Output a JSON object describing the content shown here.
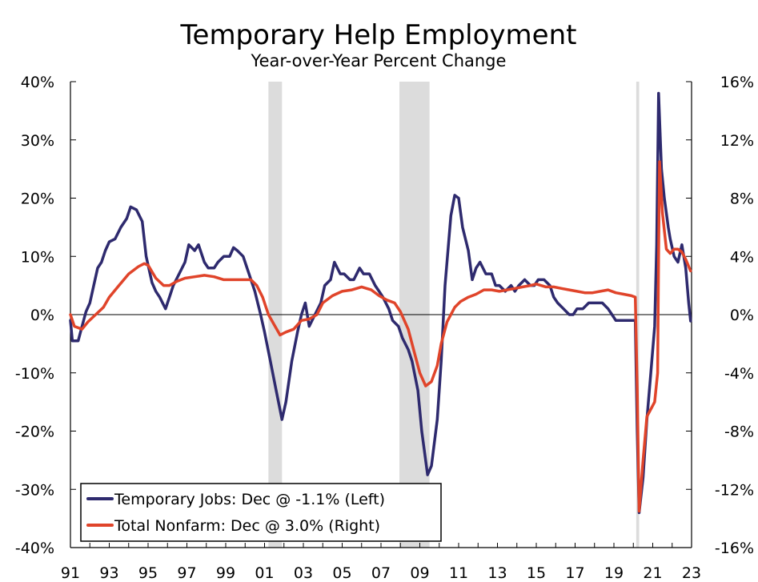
{
  "chart_data": {
    "type": "line",
    "title": "Temporary Help Employment",
    "subtitle": "Year-over-Year Percent Change",
    "x_tick_labels": [
      "91",
      "93",
      "95",
      "97",
      "99",
      "01",
      "03",
      "05",
      "07",
      "09",
      "11",
      "13",
      "15",
      "17",
      "19",
      "21",
      "23"
    ],
    "x_range": [
      1991,
      2023
    ],
    "y_left": {
      "range": [
        -40,
        40
      ],
      "ticks": [
        40,
        30,
        20,
        10,
        0,
        -10,
        -20,
        -30,
        -40
      ],
      "tick_labels": [
        "40%",
        "30%",
        "20%",
        "10%",
        "0%",
        "-10%",
        "-20%",
        "-30%",
        "-40%"
      ]
    },
    "y_right": {
      "range": [
        -16,
        16
      ],
      "ticks": [
        16,
        12,
        8,
        4,
        0,
        -4,
        -8,
        -12,
        -16
      ],
      "tick_labels": [
        "16%",
        "12%",
        "8%",
        "4%",
        "0%",
        "-4%",
        "-8%",
        "-12%",
        "-16%"
      ]
    },
    "recessions": [
      [
        2001.2,
        2001.9
      ],
      [
        2007.95,
        2009.5
      ],
      [
        2020.15,
        2020.3
      ]
    ],
    "legend": [
      {
        "label": "Temporary Jobs: Dec @ -1.1% (Left)",
        "color": "#2e2a6e"
      },
      {
        "label": "Total Nonfarm: Dec @ 3.0% (Right)",
        "color": "#e0442a"
      }
    ],
    "series": [
      {
        "name": "Temporary Jobs",
        "axis": "left",
        "color": "#2e2a6e",
        "points": [
          [
            1991.0,
            -1
          ],
          [
            1991.1,
            -4.5
          ],
          [
            1991.4,
            -4.5
          ],
          [
            1991.6,
            -2
          ],
          [
            1991.8,
            0.5
          ],
          [
            1992.0,
            2
          ],
          [
            1992.2,
            5
          ],
          [
            1992.4,
            8
          ],
          [
            1992.6,
            9
          ],
          [
            1992.8,
            11
          ],
          [
            1993.0,
            12.5
          ],
          [
            1993.3,
            13
          ],
          [
            1993.6,
            15
          ],
          [
            1993.9,
            16.5
          ],
          [
            1994.1,
            18.5
          ],
          [
            1994.4,
            18
          ],
          [
            1994.7,
            16
          ],
          [
            1994.9,
            10
          ],
          [
            1995.2,
            5.5
          ],
          [
            1995.4,
            4
          ],
          [
            1995.6,
            3
          ],
          [
            1995.9,
            1
          ],
          [
            1996.1,
            3
          ],
          [
            1996.3,
            5
          ],
          [
            1996.6,
            7
          ],
          [
            1996.9,
            9
          ],
          [
            1997.1,
            12
          ],
          [
            1997.4,
            11
          ],
          [
            1997.6,
            12
          ],
          [
            1997.9,
            9
          ],
          [
            1998.1,
            8
          ],
          [
            1998.4,
            8
          ],
          [
            1998.6,
            9
          ],
          [
            1998.9,
            10
          ],
          [
            1999.2,
            10
          ],
          [
            1999.4,
            11.5
          ],
          [
            1999.6,
            11
          ],
          [
            1999.9,
            10
          ],
          [
            2000.2,
            7
          ],
          [
            2000.5,
            4
          ],
          [
            2000.8,
            0
          ],
          [
            2001.0,
            -3
          ],
          [
            2001.3,
            -8
          ],
          [
            2001.6,
            -13
          ],
          [
            2001.9,
            -18
          ],
          [
            2002.1,
            -15
          ],
          [
            2002.4,
            -8
          ],
          [
            2002.7,
            -3
          ],
          [
            2002.9,
            0
          ],
          [
            2003.1,
            2
          ],
          [
            2003.3,
            -2
          ],
          [
            2003.6,
            0
          ],
          [
            2003.9,
            2
          ],
          [
            2004.1,
            5
          ],
          [
            2004.4,
            6
          ],
          [
            2004.6,
            9
          ],
          [
            2004.9,
            7
          ],
          [
            2005.1,
            7
          ],
          [
            2005.4,
            6
          ],
          [
            2005.6,
            6
          ],
          [
            2005.9,
            8
          ],
          [
            2006.1,
            7
          ],
          [
            2006.4,
            7
          ],
          [
            2006.7,
            5
          ],
          [
            2006.9,
            4
          ],
          [
            2007.1,
            3
          ],
          [
            2007.4,
            1
          ],
          [
            2007.6,
            -1
          ],
          [
            2007.9,
            -2
          ],
          [
            2008.1,
            -4
          ],
          [
            2008.4,
            -6
          ],
          [
            2008.6,
            -8
          ],
          [
            2008.9,
            -13
          ],
          [
            2009.1,
            -20
          ],
          [
            2009.4,
            -27.5
          ],
          [
            2009.6,
            -26
          ],
          [
            2009.9,
            -18
          ],
          [
            2010.1,
            -8
          ],
          [
            2010.3,
            5
          ],
          [
            2010.6,
            17
          ],
          [
            2010.8,
            20.5
          ],
          [
            2011.0,
            20
          ],
          [
            2011.2,
            15
          ],
          [
            2011.5,
            11
          ],
          [
            2011.7,
            6
          ],
          [
            2011.9,
            8
          ],
          [
            2012.1,
            9
          ],
          [
            2012.4,
            7
          ],
          [
            2012.7,
            7
          ],
          [
            2012.9,
            5
          ],
          [
            2013.1,
            5
          ],
          [
            2013.4,
            4
          ],
          [
            2013.7,
            5
          ],
          [
            2013.9,
            4
          ],
          [
            2014.1,
            5
          ],
          [
            2014.4,
            6
          ],
          [
            2014.7,
            5
          ],
          [
            2014.9,
            5
          ],
          [
            2015.1,
            6
          ],
          [
            2015.4,
            6
          ],
          [
            2015.7,
            5
          ],
          [
            2015.9,
            3
          ],
          [
            2016.1,
            2
          ],
          [
            2016.4,
            1
          ],
          [
            2016.7,
            0
          ],
          [
            2016.9,
            0
          ],
          [
            2017.1,
            1
          ],
          [
            2017.4,
            1
          ],
          [
            2017.7,
            2
          ],
          [
            2017.9,
            2
          ],
          [
            2018.1,
            2
          ],
          [
            2018.4,
            2
          ],
          [
            2018.7,
            1
          ],
          [
            2018.9,
            0
          ],
          [
            2019.1,
            -1
          ],
          [
            2019.4,
            -1
          ],
          [
            2019.7,
            -1
          ],
          [
            2019.9,
            -1
          ],
          [
            2020.1,
            -1
          ],
          [
            2020.2,
            -20
          ],
          [
            2020.3,
            -34
          ],
          [
            2020.5,
            -28
          ],
          [
            2020.7,
            -18
          ],
          [
            2020.9,
            -10
          ],
          [
            2021.1,
            -2
          ],
          [
            2021.2,
            12
          ],
          [
            2021.3,
            38
          ],
          [
            2021.45,
            25
          ],
          [
            2021.6,
            20
          ],
          [
            2021.8,
            15
          ],
          [
            2021.9,
            13
          ],
          [
            2022.1,
            10
          ],
          [
            2022.3,
            9
          ],
          [
            2022.5,
            12
          ],
          [
            2022.7,
            8
          ],
          [
            2022.85,
            2
          ],
          [
            2022.95,
            -1.1
          ]
        ]
      },
      {
        "name": "Total Nonfarm",
        "axis": "right",
        "color": "#e0442a",
        "points": [
          [
            1991.0,
            0
          ],
          [
            1991.2,
            -0.8
          ],
          [
            1991.6,
            -1
          ],
          [
            1991.9,
            -0.5
          ],
          [
            1992.3,
            0
          ],
          [
            1992.7,
            0.5
          ],
          [
            1993.0,
            1.2
          ],
          [
            1993.5,
            2
          ],
          [
            1994.0,
            2.8
          ],
          [
            1994.5,
            3.3
          ],
          [
            1994.8,
            3.5
          ],
          [
            1995.0,
            3.4
          ],
          [
            1995.4,
            2.5
          ],
          [
            1995.8,
            2
          ],
          [
            1996.1,
            2
          ],
          [
            1996.5,
            2.3
          ],
          [
            1996.9,
            2.5
          ],
          [
            1997.4,
            2.6
          ],
          [
            1997.9,
            2.7
          ],
          [
            1998.4,
            2.6
          ],
          [
            1998.9,
            2.4
          ],
          [
            1999.4,
            2.4
          ],
          [
            1999.9,
            2.4
          ],
          [
            2000.3,
            2.4
          ],
          [
            2000.6,
            2
          ],
          [
            2000.9,
            1.2
          ],
          [
            2001.2,
            0
          ],
          [
            2001.5,
            -0.7
          ],
          [
            2001.8,
            -1.4
          ],
          [
            2002.1,
            -1.2
          ],
          [
            2002.5,
            -1
          ],
          [
            2002.9,
            -0.4
          ],
          [
            2003.3,
            -0.3
          ],
          [
            2003.7,
            0
          ],
          [
            2004.0,
            0.8
          ],
          [
            2004.5,
            1.3
          ],
          [
            2005.0,
            1.6
          ],
          [
            2005.5,
            1.7
          ],
          [
            2006.0,
            1.9
          ],
          [
            2006.5,
            1.7
          ],
          [
            2006.9,
            1.3
          ],
          [
            2007.3,
            1
          ],
          [
            2007.7,
            0.8
          ],
          [
            2008.0,
            0.2
          ],
          [
            2008.4,
            -1
          ],
          [
            2008.7,
            -2.5
          ],
          [
            2009.0,
            -4
          ],
          [
            2009.3,
            -4.9
          ],
          [
            2009.6,
            -4.6
          ],
          [
            2009.9,
            -3.5
          ],
          [
            2010.1,
            -2
          ],
          [
            2010.4,
            -0.5
          ],
          [
            2010.8,
            0.5
          ],
          [
            2011.1,
            0.9
          ],
          [
            2011.5,
            1.2
          ],
          [
            2011.9,
            1.4
          ],
          [
            2012.3,
            1.7
          ],
          [
            2012.7,
            1.7
          ],
          [
            2013.1,
            1.6
          ],
          [
            2013.5,
            1.7
          ],
          [
            2013.9,
            1.8
          ],
          [
            2014.3,
            1.9
          ],
          [
            2014.7,
            2
          ],
          [
            2015.0,
            2.1
          ],
          [
            2015.5,
            1.9
          ],
          [
            2015.9,
            1.9
          ],
          [
            2016.3,
            1.8
          ],
          [
            2016.7,
            1.7
          ],
          [
            2017.1,
            1.6
          ],
          [
            2017.5,
            1.5
          ],
          [
            2017.9,
            1.5
          ],
          [
            2018.3,
            1.6
          ],
          [
            2018.7,
            1.7
          ],
          [
            2019.1,
            1.5
          ],
          [
            2019.5,
            1.4
          ],
          [
            2019.9,
            1.3
          ],
          [
            2020.1,
            1.2
          ],
          [
            2020.2,
            -5
          ],
          [
            2020.3,
            -13.5
          ],
          [
            2020.5,
            -10
          ],
          [
            2020.7,
            -7
          ],
          [
            2020.9,
            -6.5
          ],
          [
            2021.1,
            -6
          ],
          [
            2021.25,
            -4
          ],
          [
            2021.3,
            4
          ],
          [
            2021.35,
            10.5
          ],
          [
            2021.5,
            7
          ],
          [
            2021.7,
            4.5
          ],
          [
            2021.9,
            4.2
          ],
          [
            2022.1,
            4.5
          ],
          [
            2022.3,
            4.5
          ],
          [
            2022.5,
            4.3
          ],
          [
            2022.7,
            3.8
          ],
          [
            2022.95,
            3.0
          ]
        ]
      }
    ]
  }
}
